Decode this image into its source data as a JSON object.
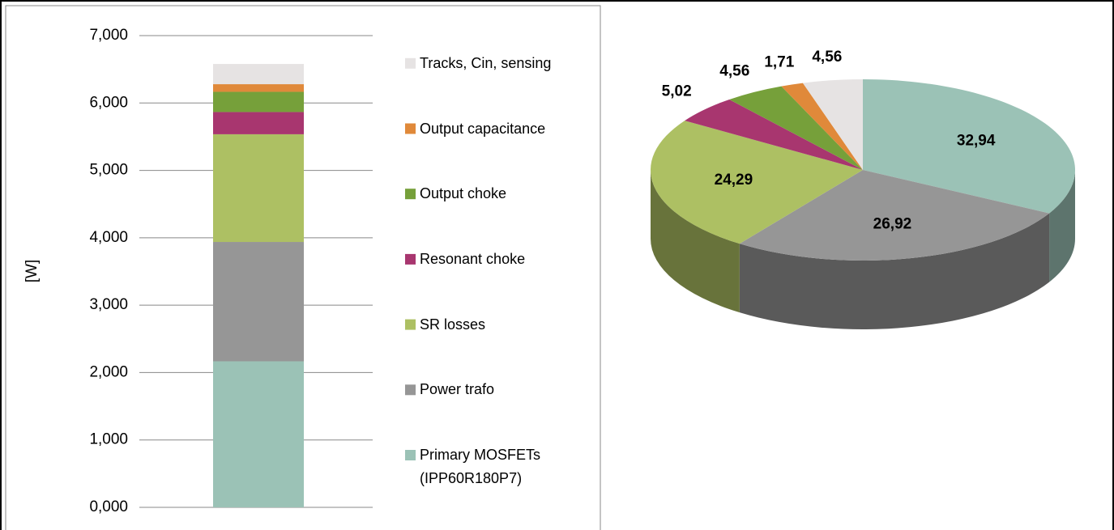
{
  "chart_data": [
    {
      "type": "stacked-bar",
      "ylabel": "[W]",
      "categories": [
        null
      ],
      "series": [
        {
          "name": "Primary MOSFETs (IPP60R180P7)",
          "color": "#9bc2b6",
          "values": [
            2.167
          ]
        },
        {
          "name": "Power trafo",
          "color": "#969696",
          "values": [
            1.771
          ]
        },
        {
          "name": "SR losses",
          "color": "#adc063",
          "values": [
            1.598
          ]
        },
        {
          "name": "Resonant choke",
          "color": "#a8366f",
          "values": [
            0.33
          ]
        },
        {
          "name": "Output choke",
          "color": "#76a03a",
          "values": [
            0.3
          ]
        },
        {
          "name": "Output capacitance",
          "color": "#e0893a",
          "values": [
            0.113
          ]
        },
        {
          "name": "Tracks, Cin, sensing",
          "color": "#e6e3e3",
          "values": [
            0.3
          ]
        }
      ],
      "ylim": [
        0,
        7
      ],
      "yticks": [
        {
          "value": 0,
          "label": "0,000"
        },
        {
          "value": 1,
          "label": "1,000"
        },
        {
          "value": 2,
          "label": "2,000"
        },
        {
          "value": 3,
          "label": "3,000"
        },
        {
          "value": 4,
          "label": "4,000"
        },
        {
          "value": 5,
          "label": "5,000"
        },
        {
          "value": 6,
          "label": "6,000"
        },
        {
          "value": 7,
          "label": "7,000"
        }
      ],
      "grid": true
    },
    {
      "type": "pie",
      "values": [
        32.94,
        26.92,
        24.29,
        5.02,
        4.56,
        1.71,
        4.56
      ],
      "value_labels": [
        "32,94",
        "26,92",
        "24,29",
        "5,02",
        "4,56",
        "1,71",
        "4,56"
      ],
      "colors": [
        "#9bc2b6",
        "#969696",
        "#adc063",
        "#a8366f",
        "#76a03a",
        "#e0893a",
        "#e6e3e3"
      ]
    }
  ]
}
